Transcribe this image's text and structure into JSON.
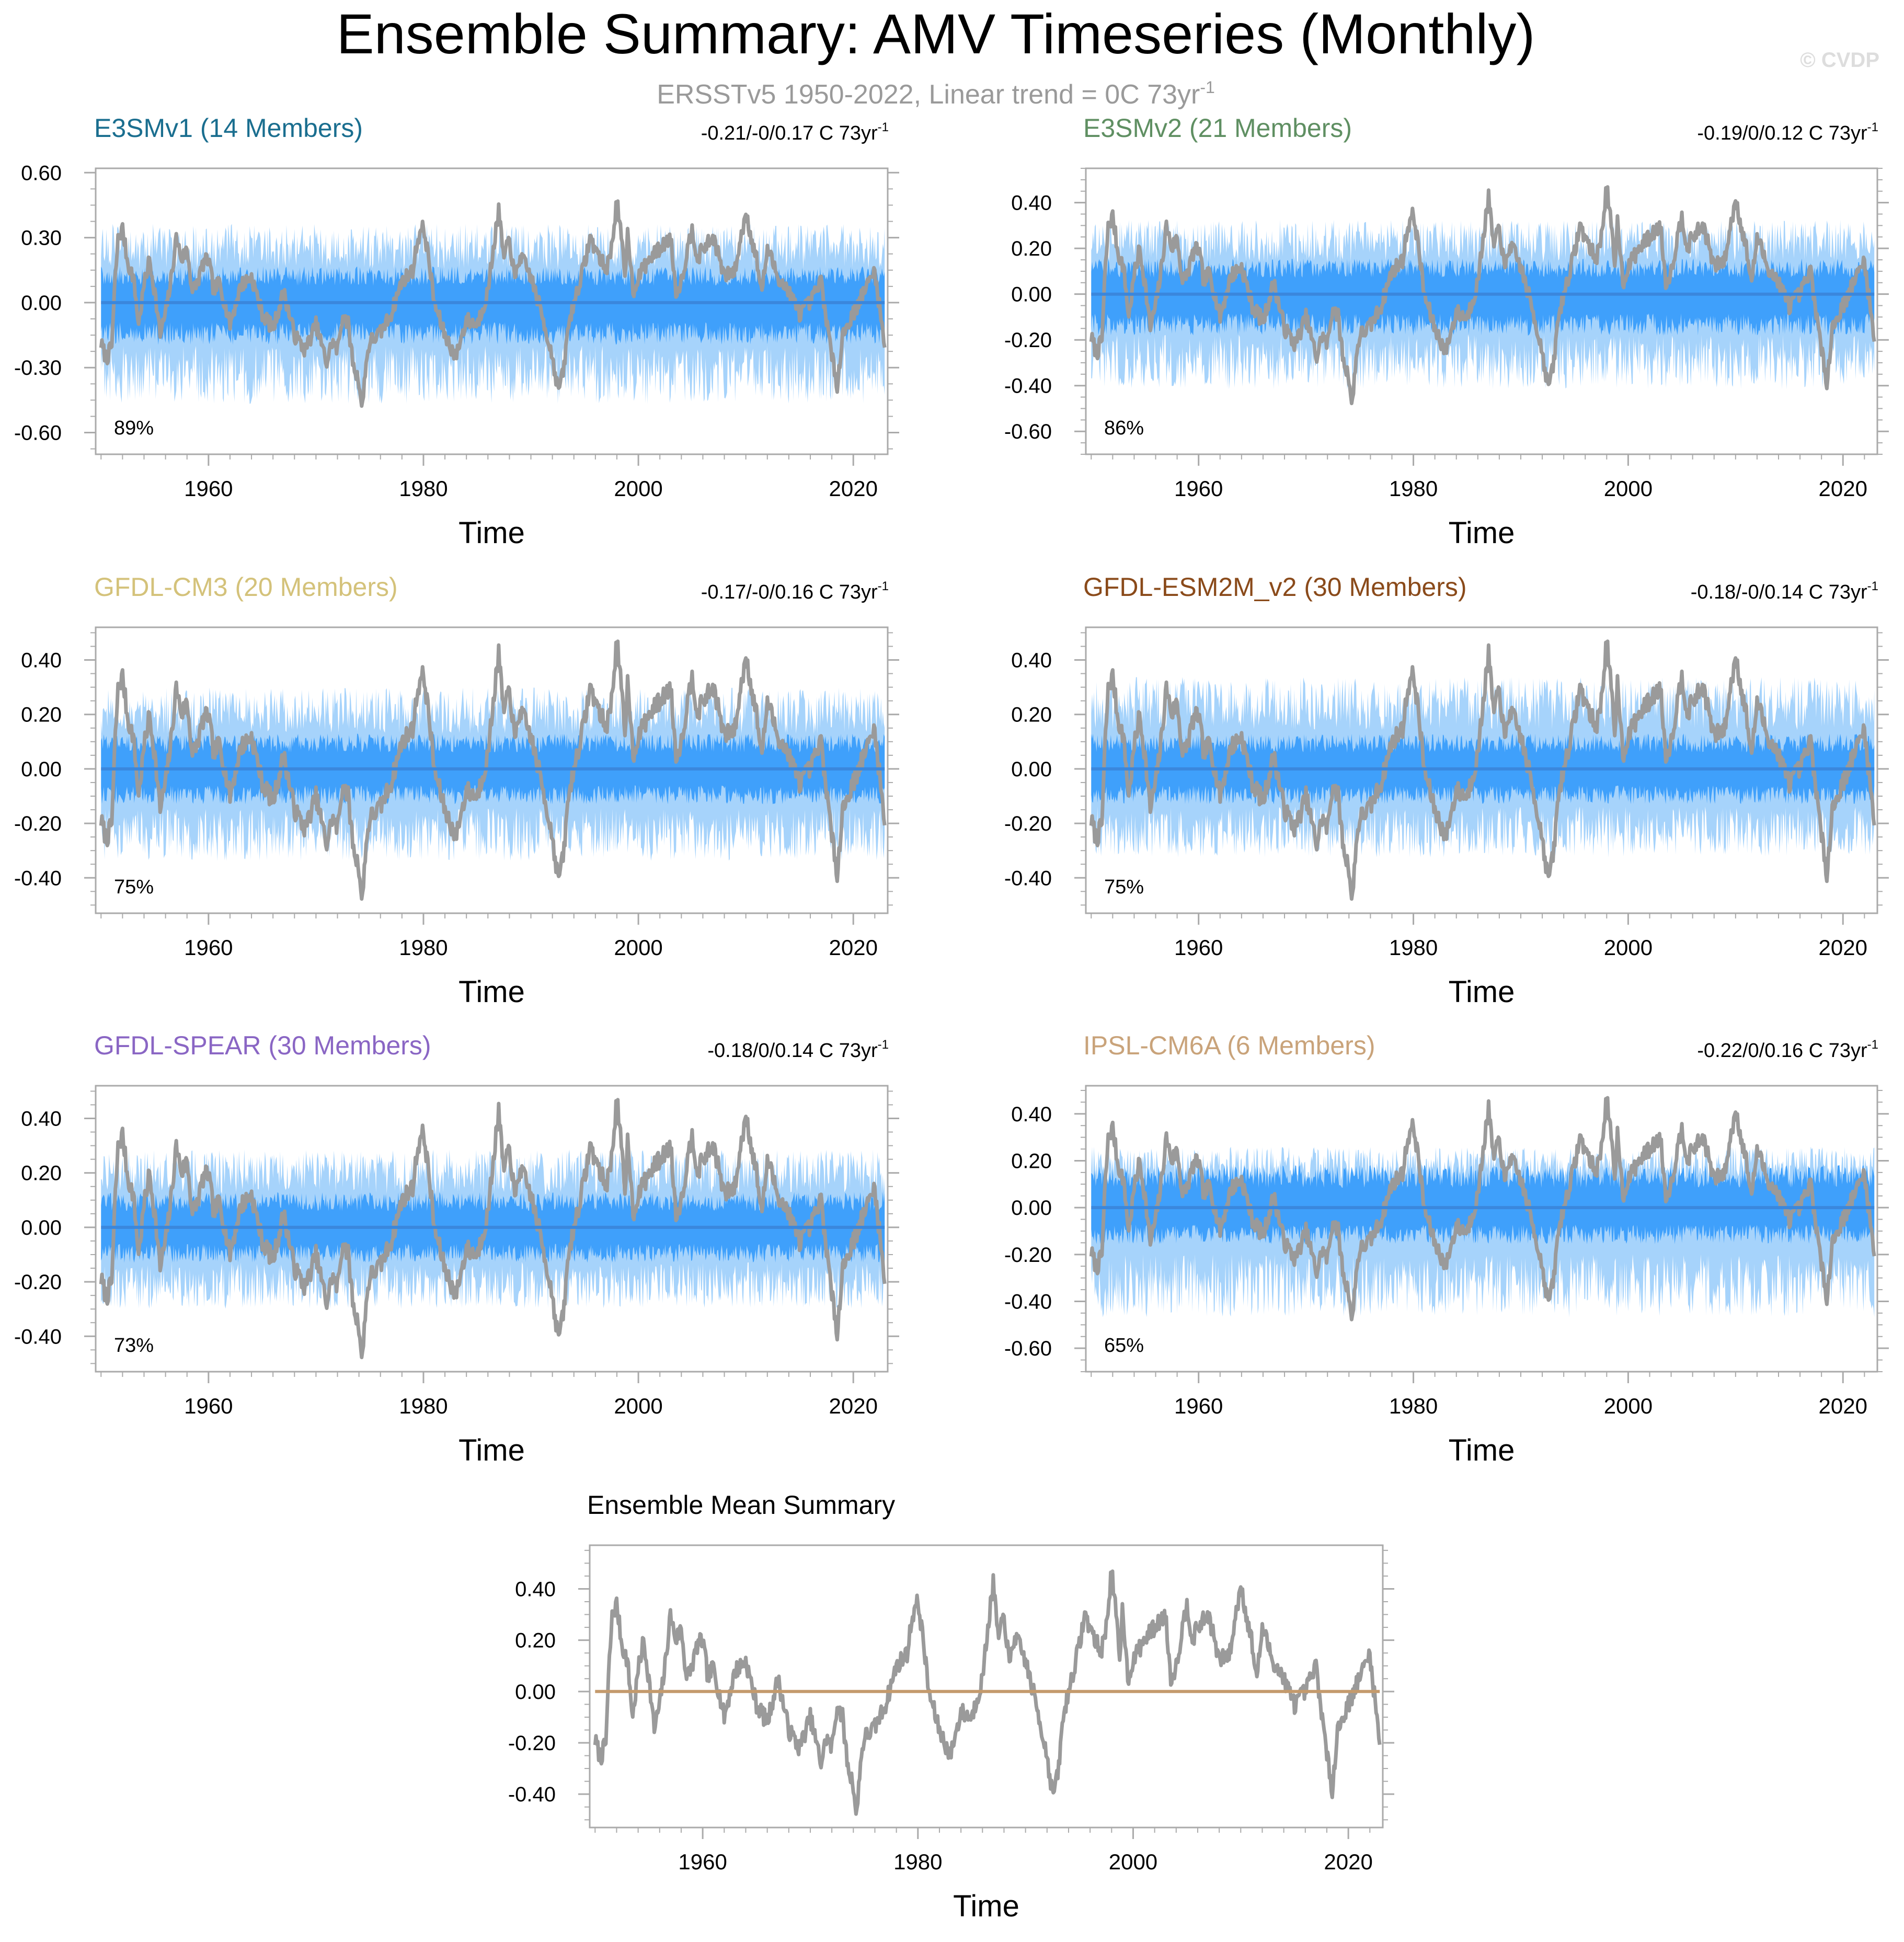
{
  "figure": {
    "title": "Ensemble Summary: AMV Timeseries (Monthly)",
    "subtitle": "ERSSTv5 1950-2022, Linear trend = 0C 73yr",
    "subtitle_sup": "-1",
    "watermark": "© CVDP"
  },
  "colors": {
    "observed_line": "#9a9a9a",
    "ensemble_mean_line": "#3a87dd",
    "band_outer": "#a6d3fb",
    "band_inner": "#3fa0fb",
    "frame": "#aaaaaa",
    "title": "#000000",
    "subtitle": "#9a9a9a",
    "summary_zero_line": "#c49a6c"
  },
  "chart_data": [
    {
      "type": "area",
      "title": "E3SMv1 (14 Members)",
      "title_color": "#1a6e8f",
      "trend_label": "-0.21/-0/0.17 C 73yr",
      "trend_sup": "-1",
      "percent_label": "89%",
      "xlabel": "Time",
      "ylabel": "",
      "xlim": [
        1949.5,
        2023.2
      ],
      "ylim": [
        -0.7,
        0.62
      ],
      "yticks": [
        -0.6,
        -0.3,
        0.0,
        0.3,
        0.6
      ],
      "ytick_labels": [
        "-0.60",
        "-0.30",
        "0.00",
        "0.30",
        "0.60"
      ],
      "xticks": [
        1960,
        1980,
        2000,
        2020
      ],
      "xtick_labels": [
        "1960",
        "1980",
        "2000",
        "2020"
      ],
      "band_outer": [
        -0.36,
        0.28
      ],
      "band_inner": [
        -0.15,
        0.13
      ],
      "series": [
        {
          "name": "Ensemble mean",
          "values": "flat at 0.00 across 1950-2022"
        },
        {
          "name": "Observed (ERSSTv5)",
          "values": "shared monthly AMV index 1950-2022"
        }
      ]
    },
    {
      "type": "area",
      "title": "E3SMv2 (21 Members)",
      "title_color": "#5f8f62",
      "trend_label": "-0.19/0/0.12 C 73yr",
      "trend_sup": "-1",
      "percent_label": "86%",
      "xlabel": "Time",
      "ylabel": "",
      "xlim": [
        1949.5,
        2023.2
      ],
      "ylim": [
        -0.7,
        0.55
      ],
      "yticks": [
        -0.6,
        -0.4,
        -0.2,
        0.0,
        0.2,
        0.4
      ],
      "ytick_labels": [
        "-0.60",
        "-0.40",
        "-0.20",
        "0.00",
        "0.20",
        "0.40"
      ],
      "xticks": [
        1960,
        1980,
        2000,
        2020
      ],
      "xtick_labels": [
        "1960",
        "1980",
        "2000",
        "2020"
      ],
      "band_outer": [
        -0.32,
        0.25
      ],
      "band_inner": [
        -0.14,
        0.12
      ],
      "series": [
        {
          "name": "Ensemble mean",
          "values": "flat at 0.00 across 1950-2022"
        },
        {
          "name": "Observed (ERSSTv5)",
          "values": "shared monthly AMV index 1950-2022"
        }
      ]
    },
    {
      "type": "area",
      "title": "GFDL-CM3 (20 Members)",
      "title_color": "#d4c27a",
      "trend_label": "-0.17/-0/0.16 C 73yr",
      "trend_sup": "-1",
      "percent_label": "75%",
      "xlabel": "Time",
      "ylabel": "",
      "xlim": [
        1949.5,
        2023.2
      ],
      "ylim": [
        -0.53,
        0.52
      ],
      "yticks": [
        -0.4,
        -0.2,
        0.0,
        0.2,
        0.4
      ],
      "ytick_labels": [
        "-0.40",
        "-0.20",
        "0.00",
        "0.20",
        "0.40"
      ],
      "xticks": [
        1960,
        1980,
        2000,
        2020
      ],
      "xtick_labels": [
        "1960",
        "1980",
        "2000",
        "2020"
      ],
      "band_outer": [
        -0.26,
        0.23
      ],
      "band_inner": [
        -0.1,
        0.1
      ],
      "series": [
        {
          "name": "Ensemble mean",
          "values": "flat at 0.00 across 1950-2022"
        },
        {
          "name": "Observed (ERSSTv5)",
          "values": "shared monthly AMV index 1950-2022"
        }
      ]
    },
    {
      "type": "area",
      "title": "GFDL-ESM2M_v2 (30 Members)",
      "title_color": "#8a4a1a",
      "trend_label": "-0.18/-0/0.14 C 73yr",
      "trend_sup": "-1",
      "percent_label": "75%",
      "xlabel": "Time",
      "ylabel": "",
      "xlim": [
        1949.5,
        2023.2
      ],
      "ylim": [
        -0.53,
        0.52
      ],
      "yticks": [
        -0.4,
        -0.2,
        0.0,
        0.2,
        0.4
      ],
      "ytick_labels": [
        "-0.40",
        "-0.20",
        "0.00",
        "0.20",
        "0.40"
      ],
      "xticks": [
        1960,
        1980,
        2000,
        2020
      ],
      "xtick_labels": [
        "1960",
        "1980",
        "2000",
        "2020"
      ],
      "band_outer": [
        -0.25,
        0.26
      ],
      "band_inner": [
        -0.1,
        0.1
      ],
      "series": [
        {
          "name": "Ensemble mean",
          "values": "flat at 0.00 across 1950-2022"
        },
        {
          "name": "Observed (ERSSTv5)",
          "values": "shared monthly AMV index 1950-2022"
        }
      ]
    },
    {
      "type": "area",
      "title": "GFDL-SPEAR (30 Members)",
      "title_color": "#8a66c4",
      "trend_label": "-0.18/0/0.14 C 73yr",
      "trend_sup": "-1",
      "percent_label": "73%",
      "xlabel": "Time",
      "ylabel": "",
      "xlim": [
        1949.5,
        2023.2
      ],
      "ylim": [
        -0.53,
        0.52
      ],
      "yticks": [
        -0.4,
        -0.2,
        0.0,
        0.2,
        0.4
      ],
      "ytick_labels": [
        "-0.40",
        "-0.20",
        "0.00",
        "0.20",
        "0.40"
      ],
      "xticks": [
        1960,
        1980,
        2000,
        2020
      ],
      "xtick_labels": [
        "1960",
        "1980",
        "2000",
        "2020"
      ],
      "band_outer": [
        -0.23,
        0.22
      ],
      "band_inner": [
        -0.1,
        0.1
      ],
      "series": [
        {
          "name": "Ensemble mean",
          "values": "flat at 0.00 across 1950-2022"
        },
        {
          "name": "Observed (ERSSTv5)",
          "values": "shared monthly AMV index 1950-2022"
        }
      ]
    },
    {
      "type": "area",
      "title": "IPSL-CM6A (6 Members)",
      "title_color": "#c9a37a",
      "trend_label": "-0.22/0/0.16 C 73yr",
      "trend_sup": "-1",
      "percent_label": "65%",
      "xlabel": "Time",
      "ylabel": "",
      "xlim": [
        1949.5,
        2023.2
      ],
      "ylim": [
        -0.7,
        0.52
      ],
      "yticks": [
        -0.6,
        -0.4,
        -0.2,
        0.0,
        0.2,
        0.4
      ],
      "ytick_labels": [
        "-0.60",
        "-0.40",
        "-0.20",
        "0.00",
        "0.20",
        "0.40"
      ],
      "xticks": [
        1960,
        1980,
        2000,
        2020
      ],
      "xtick_labels": [
        "1960",
        "1980",
        "2000",
        "2020"
      ],
      "band_outer": [
        -0.36,
        0.2
      ],
      "band_inner": [
        -0.12,
        0.14
      ],
      "series": [
        {
          "name": "Ensemble mean",
          "values": "flat at 0.00 across 1950-2022"
        },
        {
          "name": "Observed (ERSSTv5)",
          "values": "shared monthly AMV index 1950-2022"
        }
      ]
    },
    {
      "type": "line",
      "title": "Ensemble Mean Summary",
      "title_color": "#000000",
      "xlabel": "Time",
      "ylabel": "",
      "xlim": [
        1949.5,
        2023.2
      ],
      "ylim": [
        -0.53,
        0.57
      ],
      "yticks": [
        -0.4,
        -0.2,
        0.0,
        0.2,
        0.4
      ],
      "ytick_labels": [
        "-0.40",
        "-0.20",
        "0.00",
        "0.20",
        "0.40"
      ],
      "xticks": [
        1960,
        1980,
        2000,
        2020
      ],
      "xtick_labels": [
        "1960",
        "1980",
        "2000",
        "2020"
      ],
      "series": [
        {
          "name": "Ensemble mean of all models",
          "values": "flat at 0.00 across 1950-2022"
        },
        {
          "name": "Observed (ERSSTv5)",
          "values": "shared monthly AMV index 1950-2022"
        }
      ]
    }
  ],
  "observed_anchors": {
    "years": [
      1950.0,
      1950.5,
      1951.0,
      1951.3,
      1951.6,
      1952.0,
      1952.5,
      1953.0,
      1953.5,
      1954.0,
      1954.5,
      1955.0,
      1955.5,
      1956.0,
      1956.5,
      1957.0,
      1957.5,
      1958.0,
      1958.5,
      1959.0,
      1959.5,
      1960.0,
      1960.5,
      1961.0,
      1962.0,
      1963.0,
      1964.0,
      1965.0,
      1966.0,
      1967.0,
      1968.0,
      1969.0,
      1970.0,
      1971.0,
      1971.5,
      1972.0,
      1972.5,
      1973.0,
      1973.5,
      1974.0,
      1974.3,
      1974.6,
      1975.0,
      1976.0,
      1977.0,
      1978.0,
      1979.0,
      1979.5,
      1980.0,
      1980.5,
      1981.0,
      1982.0,
      1983.0,
      1984.0,
      1985.0,
      1986.0,
      1986.5,
      1987.0,
      1987.5,
      1988.0,
      1988.5,
      1989.0,
      1990.0,
      1991.0,
      1992.0,
      1992.5,
      1993.0,
      1993.5,
      1994.0,
      1995.0,
      1995.5,
      1996.0,
      1997.0,
      1997.5,
      1998.0,
      1998.4,
      1998.8,
      1999.0,
      1999.5,
      2000.0,
      2001.0,
      2002.0,
      2003.0,
      2003.5,
      2004.0,
      2005.0,
      2005.5,
      2006.0,
      2007.0,
      2008.0,
      2009.0,
      2010.0,
      2010.5,
      2011.0,
      2011.5,
      2012.0,
      2013.0,
      2014.0,
      2015.0,
      2016.0,
      2017.0,
      2018.0,
      2018.5,
      2019.0,
      2020.0,
      2021.0,
      2022.0,
      2022.5,
      2022.9
    ],
    "values": [
      -0.19,
      -0.26,
      -0.2,
      0.1,
      0.3,
      0.34,
      0.18,
      0.12,
      -0.1,
      0.08,
      0.2,
      0.05,
      -0.15,
      -0.05,
      0.1,
      0.3,
      0.2,
      0.25,
      0.05,
      0.1,
      0.18,
      0.2,
      0.05,
      0.1,
      -0.1,
      0.08,
      0.12,
      -0.05,
      -0.12,
      0.05,
      -0.15,
      -0.22,
      -0.1,
      -0.28,
      -0.18,
      -0.22,
      -0.05,
      -0.1,
      -0.3,
      -0.36,
      -0.5,
      -0.3,
      -0.18,
      -0.14,
      -0.05,
      0.1,
      0.15,
      0.3,
      0.35,
      0.2,
      0.0,
      -0.15,
      -0.25,
      -0.08,
      -0.1,
      0.05,
      0.25,
      0.42,
      0.2,
      0.3,
      0.1,
      0.22,
      0.12,
      -0.05,
      -0.25,
      -0.4,
      -0.33,
      -0.1,
      0.0,
      0.18,
      0.3,
      0.25,
      0.15,
      0.25,
      0.48,
      0.3,
      0.1,
      0.35,
      0.05,
      0.12,
      0.2,
      0.25,
      0.3,
      0.05,
      0.1,
      0.35,
      0.2,
      0.25,
      0.3,
      0.12,
      0.15,
      0.42,
      0.3,
      0.2,
      0.05,
      0.25,
      0.12,
      0.05,
      -0.05,
      0.0,
      0.1,
      -0.25,
      -0.38,
      -0.15,
      -0.05,
      0.05,
      0.15,
      -0.05,
      -0.18
    ]
  },
  "ensemble_mean_anchors": {
    "years": [
      1950.0,
      1951.0,
      1952.0,
      1953.0,
      1954.0,
      1955.0,
      1956.0,
      1957.0,
      1958.0,
      1959.0,
      1960.0,
      1961.0,
      1962.0,
      1963.0,
      1964.0,
      1965.0,
      1966.0,
      1967.0,
      1968.0,
      1969.0,
      1970.0,
      1971.0,
      1972.0,
      1973.0,
      1974.0,
      1975.0,
      1976.0,
      1977.0,
      1978.0,
      1979.0,
      1980.0,
      1981.0,
      1982.0,
      1983.0,
      1984.0,
      1985.0,
      1986.0,
      1987.0,
      1988.0,
      1989.0,
      1990.0,
      1991.0,
      1992.0,
      1993.0,
      1994.0,
      1995.0,
      1996.0,
      1997.0,
      1998.0,
      1999.0,
      2000.0,
      2001.0,
      2002.0,
      2003.0,
      2004.0,
      2005.0,
      2006.0,
      2007.0,
      2008.0,
      2009.0,
      2010.0,
      2011.0,
      2012.0,
      2013.0,
      2014.0,
      2015.0,
      2016.0,
      2017.0,
      2018.0,
      2019.0,
      2020.0,
      2021.0,
      2022.0,
      2022.9
    ],
    "values": [
      0,
      0,
      0,
      0,
      0,
      0,
      0,
      0,
      0,
      0,
      0,
      0,
      0,
      0,
      0,
      0,
      0,
      0,
      0,
      0,
      0,
      0,
      0,
      0,
      0,
      0,
      0,
      0,
      0,
      0,
      0,
      0,
      0,
      0,
      0,
      0,
      0,
      0,
      0,
      0,
      0,
      0,
      0,
      0,
      0,
      0,
      0,
      0,
      0,
      0,
      0,
      0,
      0,
      0,
      0,
      0,
      0,
      0,
      0,
      0,
      0,
      0,
      0,
      0,
      0,
      0,
      0,
      0,
      0,
      0,
      0,
      0,
      0,
      0
    ]
  }
}
